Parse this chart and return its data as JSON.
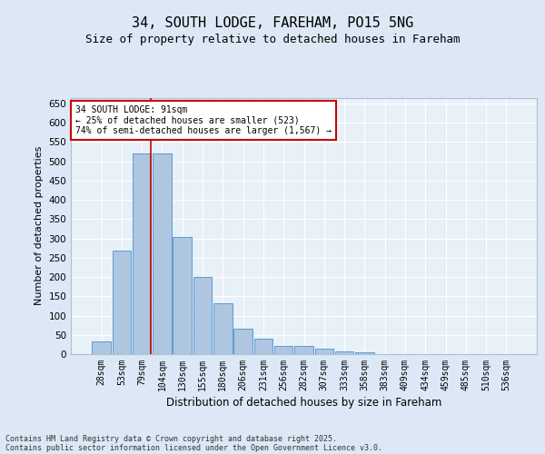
{
  "title1": "34, SOUTH LODGE, FAREHAM, PO15 5NG",
  "title2": "Size of property relative to detached houses in Fareham",
  "xlabel": "Distribution of detached houses by size in Fareham",
  "ylabel": "Number of detached properties",
  "categories": [
    "28sqm",
    "53sqm",
    "79sqm",
    "104sqm",
    "130sqm",
    "155sqm",
    "180sqm",
    "206sqm",
    "231sqm",
    "256sqm",
    "282sqm",
    "307sqm",
    "333sqm",
    "358sqm",
    "383sqm",
    "409sqm",
    "434sqm",
    "459sqm",
    "485sqm",
    "510sqm",
    "536sqm"
  ],
  "values": [
    32,
    268,
    520,
    520,
    303,
    199,
    133,
    67,
    40,
    21,
    21,
    14,
    6,
    4,
    0,
    0,
    0,
    1,
    0,
    0,
    1
  ],
  "bar_color": "#aec6e0",
  "bar_edge_color": "#5b9bd5",
  "ylim": [
    0,
    665
  ],
  "yticks": [
    0,
    50,
    100,
    150,
    200,
    250,
    300,
    350,
    400,
    450,
    500,
    550,
    600,
    650
  ],
  "vline_color": "#cc0000",
  "annotation_text": "34 SOUTH LODGE: 91sqm\n← 25% of detached houses are smaller (523)\n74% of semi-detached houses are larger (1,567) →",
  "annotation_box_color": "#ffffff",
  "annotation_box_edge": "#cc0000",
  "bg_color": "#dce8f5",
  "plot_bg_color": "#e8f0f8",
  "footer1": "Contains HM Land Registry data © Crown copyright and database right 2025.",
  "footer2": "Contains public sector information licensed under the Open Government Licence v3.0.",
  "grid_color": "#ffffff",
  "title_fontsize": 11,
  "subtitle_fontsize": 9,
  "ylabel_fontsize": 8,
  "xlabel_fontsize": 8.5,
  "tick_fontsize": 7,
  "annotation_fontsize": 7,
  "footer_fontsize": 6
}
